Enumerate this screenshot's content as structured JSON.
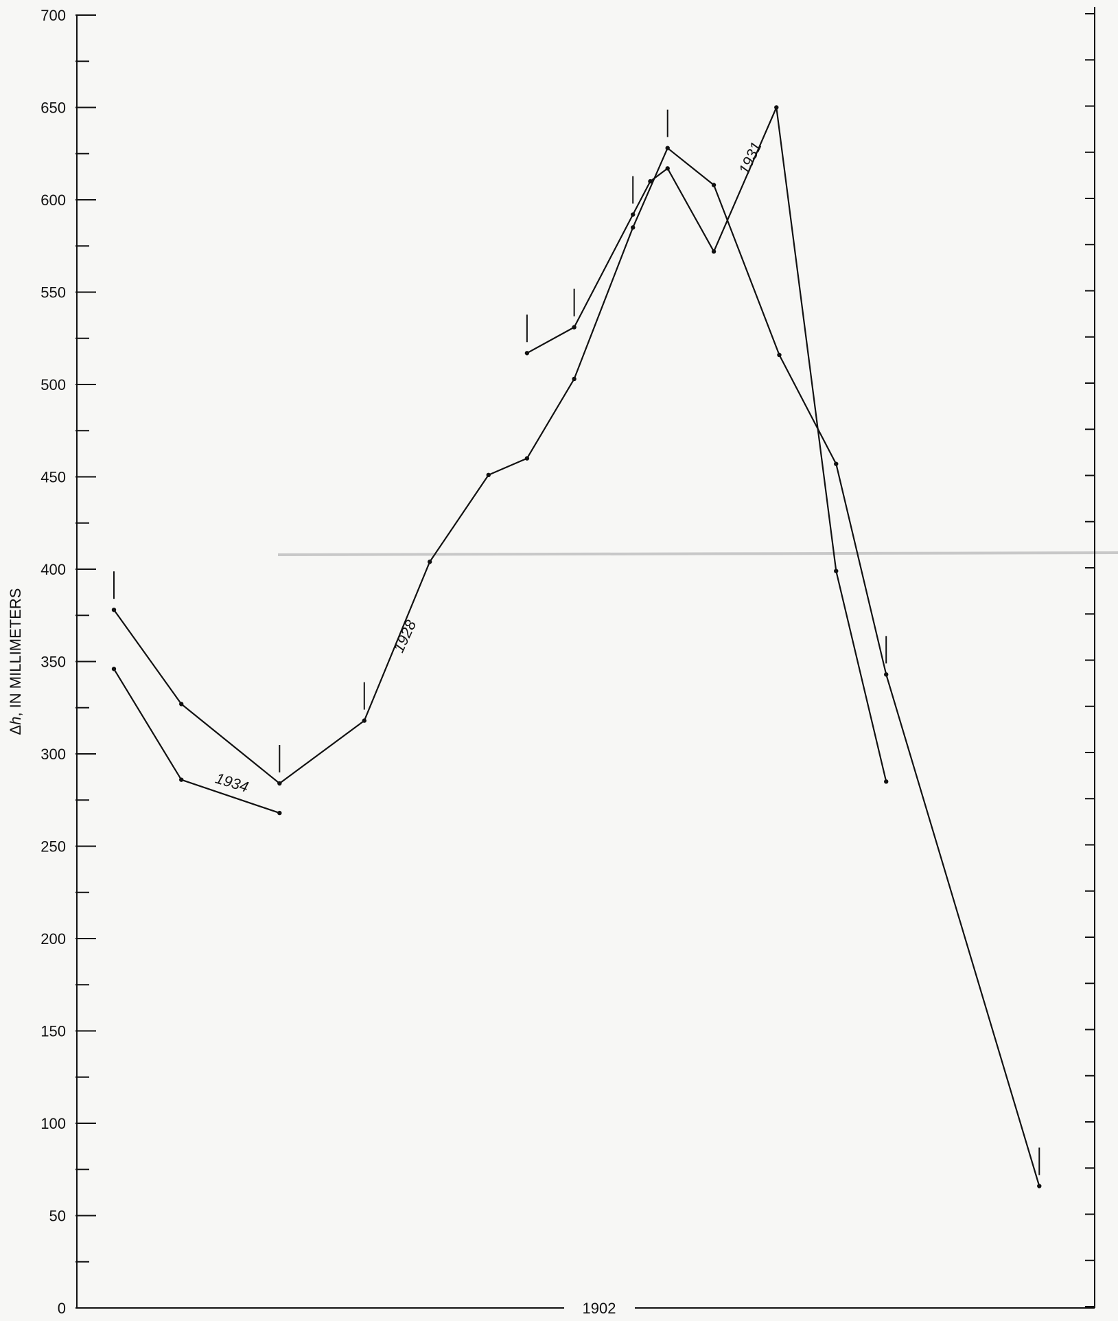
{
  "chart_data": {
    "type": "line",
    "title": "",
    "xlabel": "1902",
    "ylabel_symbol": "Δh",
    "ylabel_rest": ", IN MILLIMETERS",
    "ylim": [
      0,
      700
    ],
    "yticks": [
      0,
      50,
      100,
      150,
      200,
      250,
      300,
      350,
      400,
      450,
      500,
      550,
      600,
      650,
      700
    ],
    "x_units": "relative position along profile (no numeric labels printed)",
    "series": [
      {
        "name": "1928",
        "points": [
          {
            "x": 0.0,
            "y": 378
          },
          {
            "x": 7.0,
            "y": 327
          },
          {
            "x": 17.2,
            "y": 284
          },
          {
            "x": 26.0,
            "y": 318
          },
          {
            "x": 32.8,
            "y": 404
          },
          {
            "x": 38.9,
            "y": 451
          },
          {
            "x": 42.9,
            "y": 460
          },
          {
            "x": 47.8,
            "y": 503
          },
          {
            "x": 53.9,
            "y": 585
          },
          {
            "x": 57.5,
            "y": 628
          },
          {
            "x": 62.3,
            "y": 608
          },
          {
            "x": 69.1,
            "y": 516
          },
          {
            "x": 75.0,
            "y": 457
          },
          {
            "x": 80.2,
            "y": 343
          },
          {
            "x": 96.1,
            "y": 66
          }
        ]
      },
      {
        "name": "1931",
        "points": [
          {
            "x": 42.9,
            "y": 517
          },
          {
            "x": 47.8,
            "y": 531
          },
          {
            "x": 53.9,
            "y": 592
          },
          {
            "x": 55.7,
            "y": 610
          },
          {
            "x": 57.5,
            "y": 617
          },
          {
            "x": 62.3,
            "y": 572
          },
          {
            "x": 68.8,
            "y": 650
          },
          {
            "x": 75.0,
            "y": 399
          },
          {
            "x": 80.2,
            "y": 285
          }
        ]
      },
      {
        "name": "1934",
        "points": [
          {
            "x": 0.0,
            "y": 346
          },
          {
            "x": 7.0,
            "y": 286
          },
          {
            "x": 17.2,
            "y": 268
          }
        ]
      }
    ],
    "benchmark_markers": [
      {
        "x": 0.0,
        "y": 378
      },
      {
        "x": 17.2,
        "y": 284
      },
      {
        "x": 26.0,
        "y": 318
      },
      {
        "x": 42.9,
        "y": 517
      },
      {
        "x": 47.8,
        "y": 531
      },
      {
        "x": 53.9,
        "y": 592
      },
      {
        "x": 57.5,
        "y": 628
      },
      {
        "x": 80.2,
        "y": 343
      },
      {
        "x": 96.1,
        "y": 66
      }
    ],
    "grid": false,
    "legend": "none (series labelled inline)"
  }
}
